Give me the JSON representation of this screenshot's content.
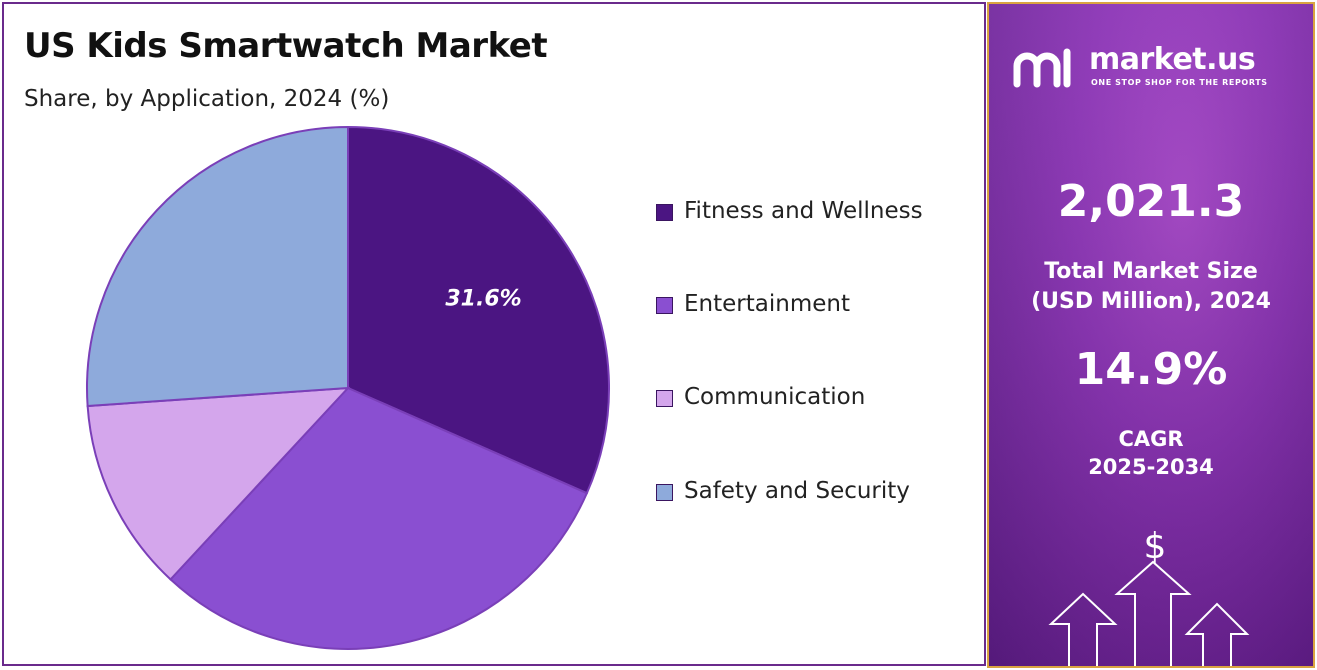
{
  "header": {
    "title": "US Kids Smartwatch Market",
    "subtitle": "Share, by Application, 2024 (%)"
  },
  "chart_data": {
    "type": "pie",
    "title": "US Kids Smartwatch Market",
    "subtitle": "Share, by Application, 2024 (%)",
    "categories": [
      "Fitness and Wellness",
      "Entertainment",
      "Communication",
      "Safety and Security"
    ],
    "values": [
      31.6,
      30.3,
      12.0,
      26.1
    ],
    "colors": [
      "#4b1582",
      "#8a4fd1",
      "#d4a6ec",
      "#8eaadb"
    ],
    "data_labels": [
      "31.6%",
      "",
      "",
      ""
    ],
    "legend_position": "right"
  },
  "brand": {
    "name": "market.us",
    "tagline": "ONE STOP SHOP FOR THE REPORTS"
  },
  "stats": {
    "market_size_value": "2,021.3",
    "market_size_label_1": "Total Market Size",
    "market_size_label_2": "(USD Million), 2024",
    "cagr_value": "14.9%",
    "cagr_label_1": "CAGR",
    "cagr_label_2": "2025-2034"
  },
  "icons": {
    "dollar": "$"
  }
}
